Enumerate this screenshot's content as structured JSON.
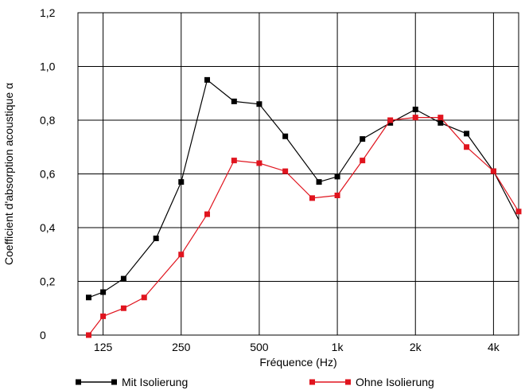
{
  "chart_data": {
    "type": "line",
    "xlabel": "Fréquence (Hz)",
    "ylabel": "Coefficient d'absorption acoustique  α",
    "x_scale": "log",
    "xlim": [
      100,
      5000
    ],
    "ylim": [
      0,
      1.2
    ],
    "x_ticks": [
      {
        "value": 125,
        "label": "125"
      },
      {
        "value": 250,
        "label": "250"
      },
      {
        "value": 500,
        "label": "500"
      },
      {
        "value": 1000,
        "label": "1k"
      },
      {
        "value": 2000,
        "label": "2k"
      },
      {
        "value": 4000,
        "label": "4k"
      }
    ],
    "y_ticks": [
      {
        "value": 0,
        "label": "0"
      },
      {
        "value": 0.2,
        "label": "0,2"
      },
      {
        "value": 0.4,
        "label": "0,4"
      },
      {
        "value": 0.6,
        "label": "0,6"
      },
      {
        "value": 0.8,
        "label": "0,8"
      },
      {
        "value": 1.0,
        "label": "1,0"
      },
      {
        "value": 1.2,
        "label": "1,2"
      }
    ],
    "grid": true,
    "legend_position": "bottom",
    "series": [
      {
        "name": "Mit Isolierung",
        "color": "#000000",
        "points": [
          [
            110,
            0.14
          ],
          [
            125,
            0.16
          ],
          [
            150,
            0.21
          ],
          [
            200,
            0.36
          ],
          [
            250,
            0.57
          ],
          [
            315,
            0.95
          ],
          [
            400,
            0.87
          ],
          [
            500,
            0.86
          ],
          [
            630,
            0.74
          ],
          [
            850,
            0.57
          ],
          [
            1000,
            0.59
          ],
          [
            1250,
            0.73
          ],
          [
            1600,
            0.79
          ],
          [
            2000,
            0.84
          ],
          [
            2500,
            0.79
          ],
          [
            3150,
            0.75
          ],
          [
            4000,
            0.61
          ],
          [
            5000,
            0.43
          ]
        ],
        "markers_count": 17
      },
      {
        "name": "Ohne Isolierung",
        "color": "#e0141e",
        "points": [
          [
            110,
            0.0
          ],
          [
            125,
            0.07
          ],
          [
            150,
            0.1
          ],
          [
            180,
            0.14
          ],
          [
            250,
            0.3
          ],
          [
            315,
            0.45
          ],
          [
            400,
            0.65
          ],
          [
            500,
            0.64
          ],
          [
            630,
            0.61
          ],
          [
            800,
            0.51
          ],
          [
            1000,
            0.52
          ],
          [
            1250,
            0.65
          ],
          [
            1600,
            0.8
          ],
          [
            2000,
            0.81
          ],
          [
            2500,
            0.81
          ],
          [
            3150,
            0.7
          ],
          [
            4000,
            0.61
          ],
          [
            5000,
            0.46
          ]
        ],
        "markers_count": 18
      }
    ]
  }
}
